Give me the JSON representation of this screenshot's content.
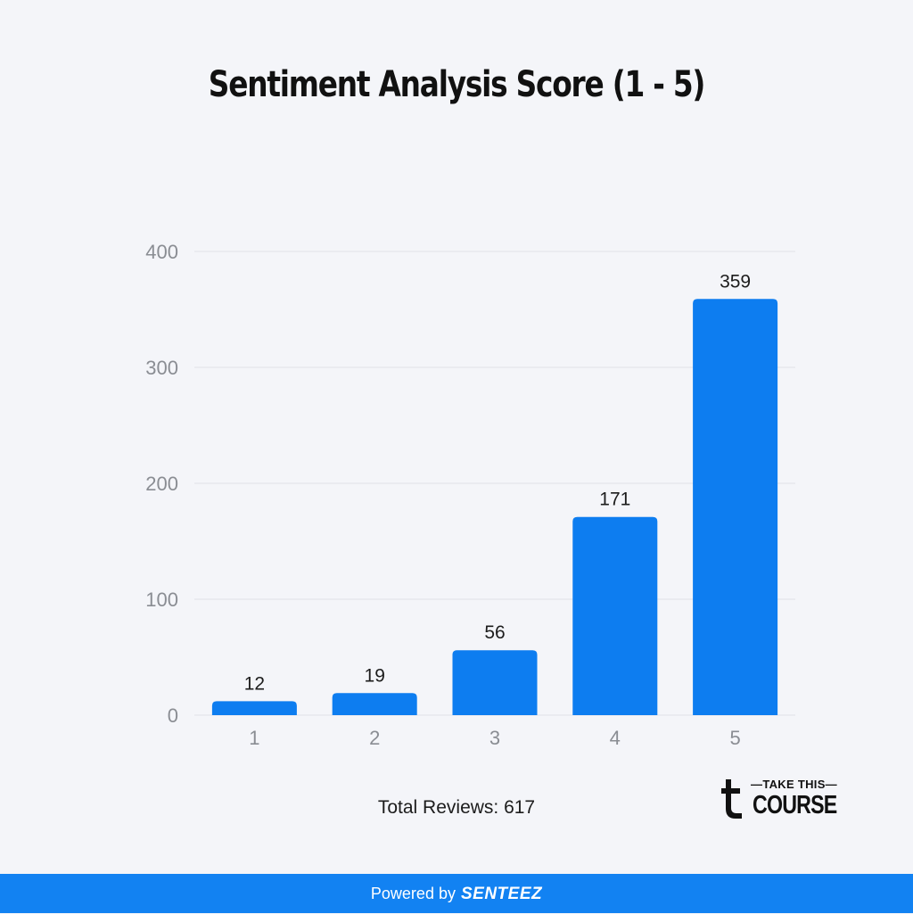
{
  "colors": {
    "bar": "#0d7df0",
    "footer": "#1282f2",
    "background": "#f4f5f9",
    "grid": "#dfe1e6"
  },
  "chart_data": {
    "type": "bar",
    "title": "Sentiment Analysis Score (1 - 5)",
    "categories": [
      "1",
      "2",
      "3",
      "4",
      "5"
    ],
    "values": [
      12,
      19,
      56,
      171,
      359
    ],
    "yticks": [
      0,
      100,
      200,
      300,
      400
    ],
    "ylim": [
      0,
      400
    ],
    "grid": true,
    "data_labels": true
  },
  "total_label": "Total Reviews: 617",
  "logo": {
    "top": "TAKE THIS",
    "bottom": "COURSE"
  },
  "footer": {
    "prefix": "Powered by",
    "brand": "SENTEEZ"
  }
}
